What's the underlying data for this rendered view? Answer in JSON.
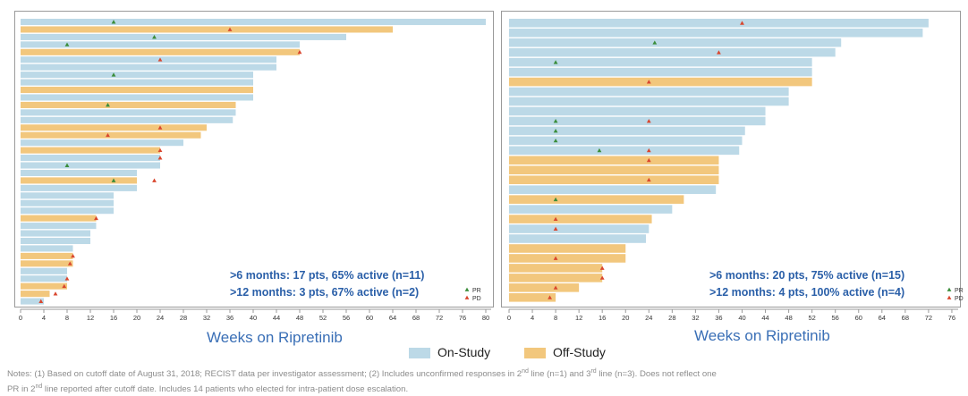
{
  "colors": {
    "on_study": "#bcd9e7",
    "off_study": "#f2c77d",
    "pr_marker": "#3a8d3a",
    "pd_marker": "#d9462e",
    "annotation": "#2a5fa8"
  },
  "legend": {
    "on_study": "On-Study",
    "off_study": "Off-Study"
  },
  "notes": {
    "line1": "Notes: (1) Based on cutoff date of August 31, 2018; RECIST data per investigator assessment; (2) Includes unconfirmed responses in 2",
    "sup1": "nd",
    "mid1": " line (n=1) and 3",
    "sup2": "rd",
    "end1": " line (n=3). Does not reflect one",
    "line2a": "PR in 2",
    "sup3": "nd",
    "line2b": " line reported after cutoff date. Includes 14 patients who elected for intra-patient dose escalation."
  },
  "chart_data": [
    {
      "type": "bar",
      "orientation": "horizontal",
      "xlabel": "Weeks on Ripretinib",
      "xlim": [
        0,
        80
      ],
      "xticks": [
        0,
        4,
        8,
        12,
        16,
        20,
        24,
        28,
        32,
        36,
        40,
        44,
        48,
        52,
        56,
        60,
        64,
        68,
        72,
        76,
        80
      ],
      "annotations": [
        ">6 months: 17 pts, 65% active (n=11)",
        ">12 months: 3 pts, 67% active (n=2)"
      ],
      "marker_legend": [
        "PR",
        "PD"
      ],
      "bars": [
        {
          "weeks": 80,
          "status": "on",
          "pr": 16
        },
        {
          "weeks": 64,
          "status": "off",
          "pd": 36
        },
        {
          "weeks": 56,
          "status": "on",
          "pr": 23
        },
        {
          "weeks": 48,
          "status": "on",
          "pr": 8
        },
        {
          "weeks": 48,
          "status": "off",
          "pd": 48
        },
        {
          "weeks": 44,
          "status": "on",
          "pd": 24
        },
        {
          "weeks": 44,
          "status": "on"
        },
        {
          "weeks": 40,
          "status": "on",
          "pr": 16
        },
        {
          "weeks": 40,
          "status": "on"
        },
        {
          "weeks": 40,
          "status": "off"
        },
        {
          "weeks": 40,
          "status": "on"
        },
        {
          "weeks": 37,
          "status": "off",
          "pr": 15
        },
        {
          "weeks": 37,
          "status": "on"
        },
        {
          "weeks": 36.5,
          "status": "on"
        },
        {
          "weeks": 32,
          "status": "off",
          "pd": 24
        },
        {
          "weeks": 31,
          "status": "off",
          "pd": 15
        },
        {
          "weeks": 28,
          "status": "on"
        },
        {
          "weeks": 24,
          "status": "off",
          "pd": 24
        },
        {
          "weeks": 24,
          "status": "on",
          "pd": 24
        },
        {
          "weeks": 24,
          "status": "on",
          "pr": 8
        },
        {
          "weeks": 20,
          "status": "on"
        },
        {
          "weeks": 20,
          "status": "off",
          "pr": 16,
          "pd": 23
        },
        {
          "weeks": 20,
          "status": "on"
        },
        {
          "weeks": 16,
          "status": "on"
        },
        {
          "weeks": 16,
          "status": "on"
        },
        {
          "weeks": 16,
          "status": "on"
        },
        {
          "weeks": 13,
          "status": "off",
          "pd": 13
        },
        {
          "weeks": 13,
          "status": "on"
        },
        {
          "weeks": 12,
          "status": "on"
        },
        {
          "weeks": 12,
          "status": "on"
        },
        {
          "weeks": 9,
          "status": "on"
        },
        {
          "weeks": 9,
          "status": "off",
          "pd": 9
        },
        {
          "weeks": 9,
          "status": "off",
          "pd": 8.5
        },
        {
          "weeks": 8,
          "status": "on"
        },
        {
          "weeks": 8,
          "status": "on",
          "pd": 8
        },
        {
          "weeks": 8,
          "status": "off",
          "pd": 7.5
        },
        {
          "weeks": 5,
          "status": "off",
          "pd": 6
        },
        {
          "weeks": 4,
          "status": "on",
          "pd": 3.5
        }
      ]
    },
    {
      "type": "bar",
      "orientation": "horizontal",
      "xlabel": "Weeks on Ripretinib",
      "xlim": [
        0,
        80
      ],
      "xticks": [
        0,
        4,
        8,
        12,
        16,
        20,
        24,
        28,
        32,
        36,
        40,
        44,
        48,
        52,
        56,
        60,
        64,
        68,
        72,
        76
      ],
      "annotations": [
        ">6 months: 20 pts, 75% active (n=15)",
        ">12 months: 4 pts, 100% active (n=4)"
      ],
      "marker_legend": [
        "PR",
        "PD"
      ],
      "bars": [
        {
          "weeks": 72,
          "status": "on",
          "pd": 40
        },
        {
          "weeks": 71,
          "status": "on"
        },
        {
          "weeks": 57,
          "status": "on",
          "pr": 25
        },
        {
          "weeks": 56,
          "status": "on",
          "pd": 36
        },
        {
          "weeks": 52,
          "status": "on",
          "pr": 8
        },
        {
          "weeks": 52,
          "status": "on"
        },
        {
          "weeks": 52,
          "status": "off",
          "pd": 24
        },
        {
          "weeks": 48,
          "status": "on"
        },
        {
          "weeks": 48,
          "status": "on"
        },
        {
          "weeks": 44,
          "status": "on"
        },
        {
          "weeks": 44,
          "status": "on",
          "pr": 8,
          "pd": 24
        },
        {
          "weeks": 40.5,
          "status": "on",
          "pr": 8
        },
        {
          "weeks": 40,
          "status": "on",
          "pr": 8
        },
        {
          "weeks": 39.5,
          "status": "on",
          "pr": 15.5,
          "pd": 24
        },
        {
          "weeks": 36,
          "status": "off",
          "pd": 24
        },
        {
          "weeks": 36,
          "status": "off"
        },
        {
          "weeks": 36,
          "status": "off",
          "pd": 24
        },
        {
          "weeks": 35.5,
          "status": "on"
        },
        {
          "weeks": 30,
          "status": "off",
          "pr": 8
        },
        {
          "weeks": 28,
          "status": "on"
        },
        {
          "weeks": 24.5,
          "status": "off",
          "pd": 8
        },
        {
          "weeks": 24,
          "status": "on",
          "pd": 8
        },
        {
          "weeks": 23.5,
          "status": "on"
        },
        {
          "weeks": 20,
          "status": "off"
        },
        {
          "weeks": 20,
          "status": "off",
          "pd": 8
        },
        {
          "weeks": 16,
          "status": "off",
          "pd": 16
        },
        {
          "weeks": 16,
          "status": "off",
          "pd": 16
        },
        {
          "weeks": 12,
          "status": "off",
          "pd": 8
        },
        {
          "weeks": 8,
          "status": "off",
          "pd": 7
        }
      ]
    }
  ]
}
